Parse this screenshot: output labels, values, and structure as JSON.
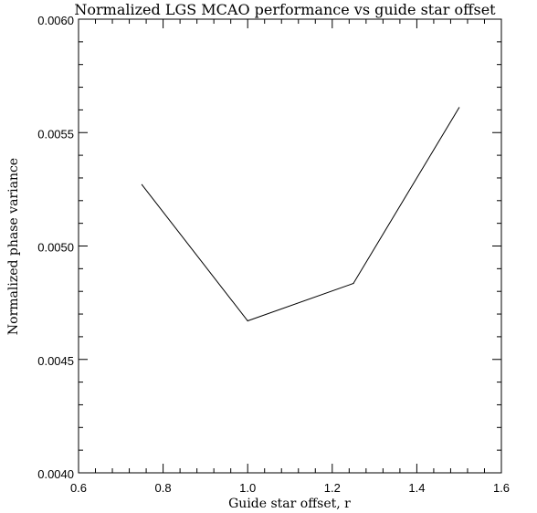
{
  "chart_data": {
    "type": "line",
    "title": "Normalized LGS MCAO performance vs guide star offset",
    "xlabel": "Guide star offset, r",
    "ylabel": "Normalized phase variance",
    "xlim": [
      0.6,
      1.6
    ],
    "ylim": [
      0.004,
      0.006
    ],
    "xticks": [
      0.6,
      0.8,
      1.0,
      1.2,
      1.4,
      1.6
    ],
    "xtick_labels": [
      "0.6",
      "0.8",
      "1.0",
      "1.2",
      "1.4",
      "1.6"
    ],
    "yticks": [
      0.004,
      0.0045,
      0.005,
      0.0055,
      0.006
    ],
    "ytick_labels": [
      "0.0040",
      "0.0045",
      "0.0050",
      "0.0055",
      "0.0060"
    ],
    "grid": false,
    "series": [
      {
        "x": [
          0.75,
          1.0,
          1.25,
          1.5
        ],
        "y": [
          0.00527,
          0.00467,
          0.004835,
          0.00561
        ]
      }
    ],
    "line_color": "#000000"
  }
}
